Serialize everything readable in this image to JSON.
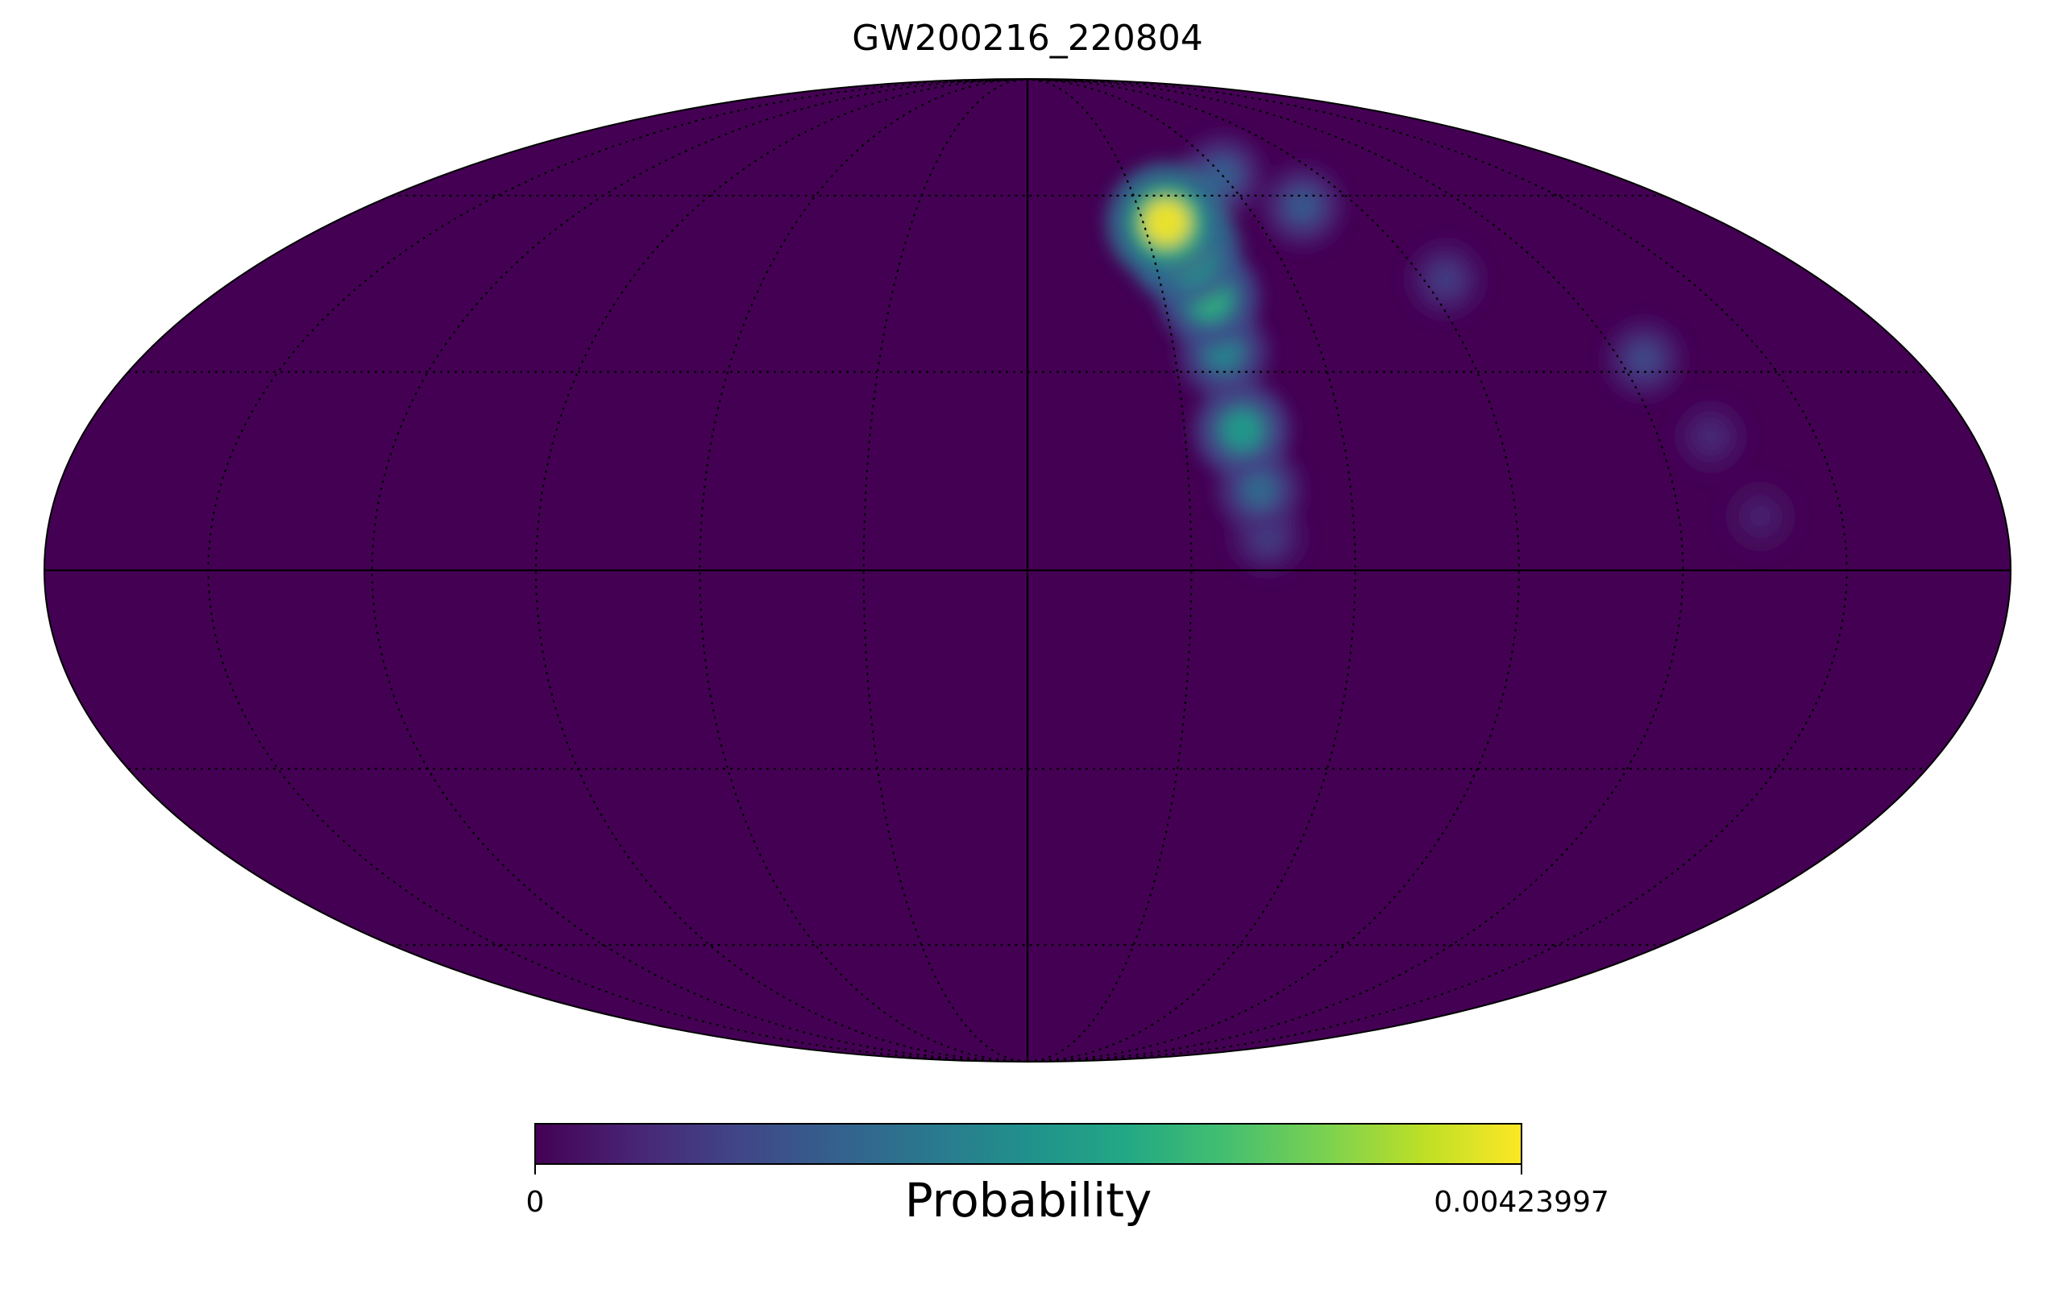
{
  "title": "GW200216_220804",
  "projection": "mollweide",
  "chart_data": {
    "type": "heatmap",
    "title": "GW200216_220804",
    "colormap": "viridis",
    "background_value_color": "#440154",
    "graticule": {
      "meridians_deg": [
        -150,
        -120,
        -90,
        -60,
        -30,
        0,
        30,
        60,
        90,
        120,
        150
      ],
      "parallels_deg": [
        -60,
        -30,
        0,
        30,
        60
      ],
      "style": "dotted",
      "central_lines": "solid"
    },
    "probability_regions": [
      {
        "lon": 36,
        "lat": 55,
        "weight": 1.0
      },
      {
        "lon": 38,
        "lat": 50,
        "weight": 0.85
      },
      {
        "lon": 40,
        "lat": 42,
        "weight": 0.65
      },
      {
        "lon": 40,
        "lat": 33,
        "weight": 0.45
      },
      {
        "lon": 41,
        "lat": 21,
        "weight": 0.55
      },
      {
        "lon": 43,
        "lat": 12,
        "weight": 0.35
      },
      {
        "lon": 44,
        "lat": 5,
        "weight": 0.18
      },
      {
        "lon": 60,
        "lat": 64,
        "weight": 0.3
      },
      {
        "lon": 75,
        "lat": 58,
        "weight": 0.28
      },
      {
        "lon": 95,
        "lat": 45,
        "weight": 0.18
      },
      {
        "lon": 125,
        "lat": 32,
        "weight": 0.22
      },
      {
        "lon": 130,
        "lat": 20,
        "weight": 0.12
      },
      {
        "lon": 135,
        "lat": 8,
        "weight": 0.08
      }
    ],
    "colorbar": {
      "label": "Probability",
      "min_label": "0",
      "max_label": "0.00423997",
      "min": 0,
      "max": 0.00423997
    }
  }
}
